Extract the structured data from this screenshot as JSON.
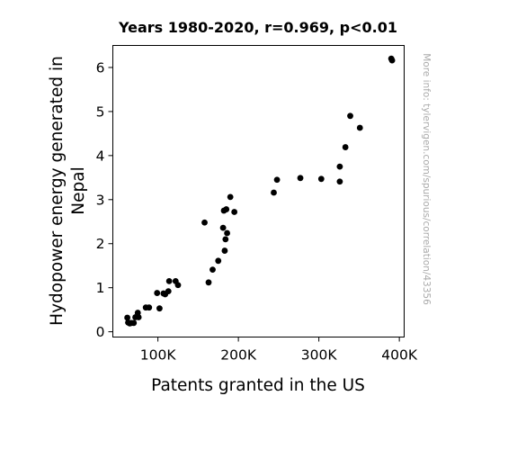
{
  "chart_data": {
    "type": "scatter",
    "title": "Years 1980-2020, r=0.969, p<0.01",
    "xlabel": "Patents granted in the US",
    "ylabel": [
      "Hydopower energy generated in",
      "Nepal"
    ],
    "xlim": [
      44000,
      406000
    ],
    "ylim": [
      -0.12,
      6.5
    ],
    "xticks": [
      100000,
      200000,
      300000,
      400000
    ],
    "xtick_labels": [
      "100K",
      "200K",
      "300K",
      "400K"
    ],
    "yticks": [
      0,
      1,
      2,
      3,
      4,
      5,
      6
    ],
    "ytick_labels": [
      "0",
      "1",
      "2",
      "3",
      "4",
      "5",
      "6"
    ],
    "watermark": "More info: tylervigen.com/spurious/correlation/43356",
    "point_color": "#000000",
    "grid": false,
    "points": [
      [
        62000,
        0.32
      ],
      [
        63000,
        0.21
      ],
      [
        65000,
        0.19
      ],
      [
        67000,
        0.2
      ],
      [
        70000,
        0.2
      ],
      [
        72000,
        0.33
      ],
      [
        75000,
        0.43
      ],
      [
        76000,
        0.33
      ],
      [
        85000,
        0.55
      ],
      [
        89000,
        0.55
      ],
      [
        99000,
        0.88
      ],
      [
        102000,
        0.53
      ],
      [
        107000,
        0.87
      ],
      [
        109000,
        0.85
      ],
      [
        113000,
        0.92
      ],
      [
        114000,
        1.15
      ],
      [
        122000,
        1.15
      ],
      [
        125000,
        1.06
      ],
      [
        158000,
        2.48
      ],
      [
        163000,
        1.12
      ],
      [
        168000,
        1.41
      ],
      [
        175000,
        1.61
      ],
      [
        181000,
        2.36
      ],
      [
        182000,
        2.75
      ],
      [
        183000,
        1.84
      ],
      [
        184000,
        2.1
      ],
      [
        185000,
        2.78
      ],
      [
        186000,
        2.24
      ],
      [
        190000,
        3.06
      ],
      [
        195000,
        2.72
      ],
      [
        244000,
        3.16
      ],
      [
        248000,
        3.45
      ],
      [
        277000,
        3.49
      ],
      [
        303000,
        3.47
      ],
      [
        326000,
        3.41
      ],
      [
        326000,
        3.75
      ],
      [
        333000,
        4.19
      ],
      [
        339000,
        4.9
      ],
      [
        351000,
        4.63
      ],
      [
        390000,
        6.2
      ],
      [
        391000,
        6.16
      ]
    ]
  }
}
